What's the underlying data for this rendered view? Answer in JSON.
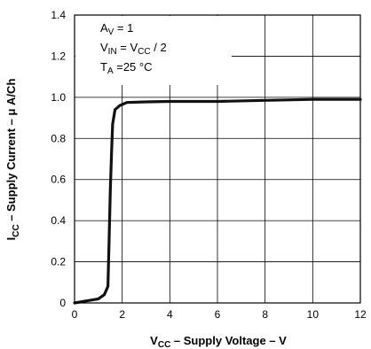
{
  "chart_data": {
    "type": "line",
    "xlabel": {
      "main": "V",
      "sub": "CC",
      "rest": " – Supply Voltage – V"
    },
    "ylabel": {
      "main": "I",
      "sub": "CC",
      "rest": " – Supply Current – μ A/Ch"
    },
    "xlim": [
      0,
      12
    ],
    "ylim": [
      0,
      1.4
    ],
    "x_ticks": [
      0,
      2,
      4,
      6,
      8,
      10,
      12
    ],
    "y_ticks": [
      0,
      0.2,
      0.4,
      0.6,
      0.8,
      1.0,
      1.2,
      1.4
    ],
    "x_tick_labels": [
      "0",
      "2",
      "4",
      "6",
      "8",
      "10",
      "12"
    ],
    "y_tick_labels": [
      "0",
      "0.2",
      "0.4",
      "0.6",
      "0.8",
      "1.0",
      "1.2",
      "1.4"
    ],
    "grid": true,
    "annotation": [
      {
        "main": "A",
        "sub": "V",
        "rest": " = 1"
      },
      {
        "main": "V",
        "sub": "IN",
        "mid": " = V",
        "sub2": "CC",
        "rest": " / 2"
      },
      {
        "main": "T",
        "sub": "A",
        "rest": " =25 °C"
      }
    ],
    "series": [
      {
        "color": "#111111",
        "x": [
          0,
          0.5,
          1.0,
          1.25,
          1.4,
          1.45,
          1.5,
          1.55,
          1.6,
          1.7,
          1.9,
          2.2,
          3,
          4,
          6,
          8,
          10,
          12
        ],
        "y": [
          0.0,
          0.01,
          0.02,
          0.04,
          0.08,
          0.3,
          0.55,
          0.72,
          0.87,
          0.94,
          0.96,
          0.975,
          0.978,
          0.98,
          0.98,
          0.985,
          0.99,
          0.99
        ]
      }
    ]
  }
}
